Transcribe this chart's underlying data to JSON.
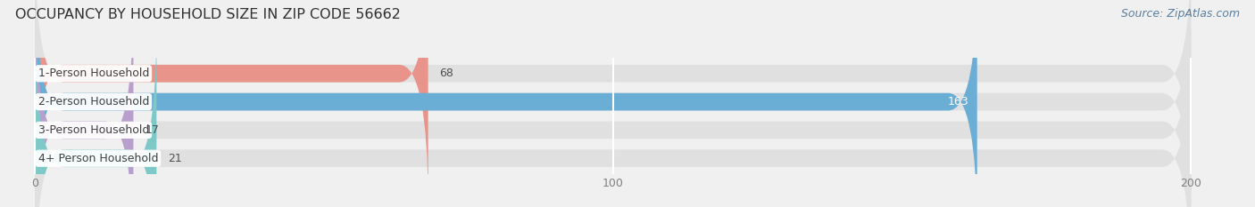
{
  "title": "OCCUPANCY BY HOUSEHOLD SIZE IN ZIP CODE 56662",
  "source": "Source: ZipAtlas.com",
  "categories": [
    "1-Person Household",
    "2-Person Household",
    "3-Person Household",
    "4+ Person Household"
  ],
  "values": [
    68,
    163,
    17,
    21
  ],
  "bar_colors": [
    "#e8948a",
    "#6aaed6",
    "#b9a0cc",
    "#7ec8c8"
  ],
  "xlim": [
    -5,
    210
  ],
  "xticks": [
    0,
    100,
    200
  ],
  "bar_height": 0.62,
  "title_fontsize": 11.5,
  "label_fontsize": 9,
  "value_fontsize": 9,
  "source_fontsize": 9,
  "bg_color": "#f0f0f0",
  "bar_bg_color": "#e0e0e0",
  "title_color": "#303030",
  "source_color": "#5a7fa0",
  "grid_color": "#ffffff"
}
